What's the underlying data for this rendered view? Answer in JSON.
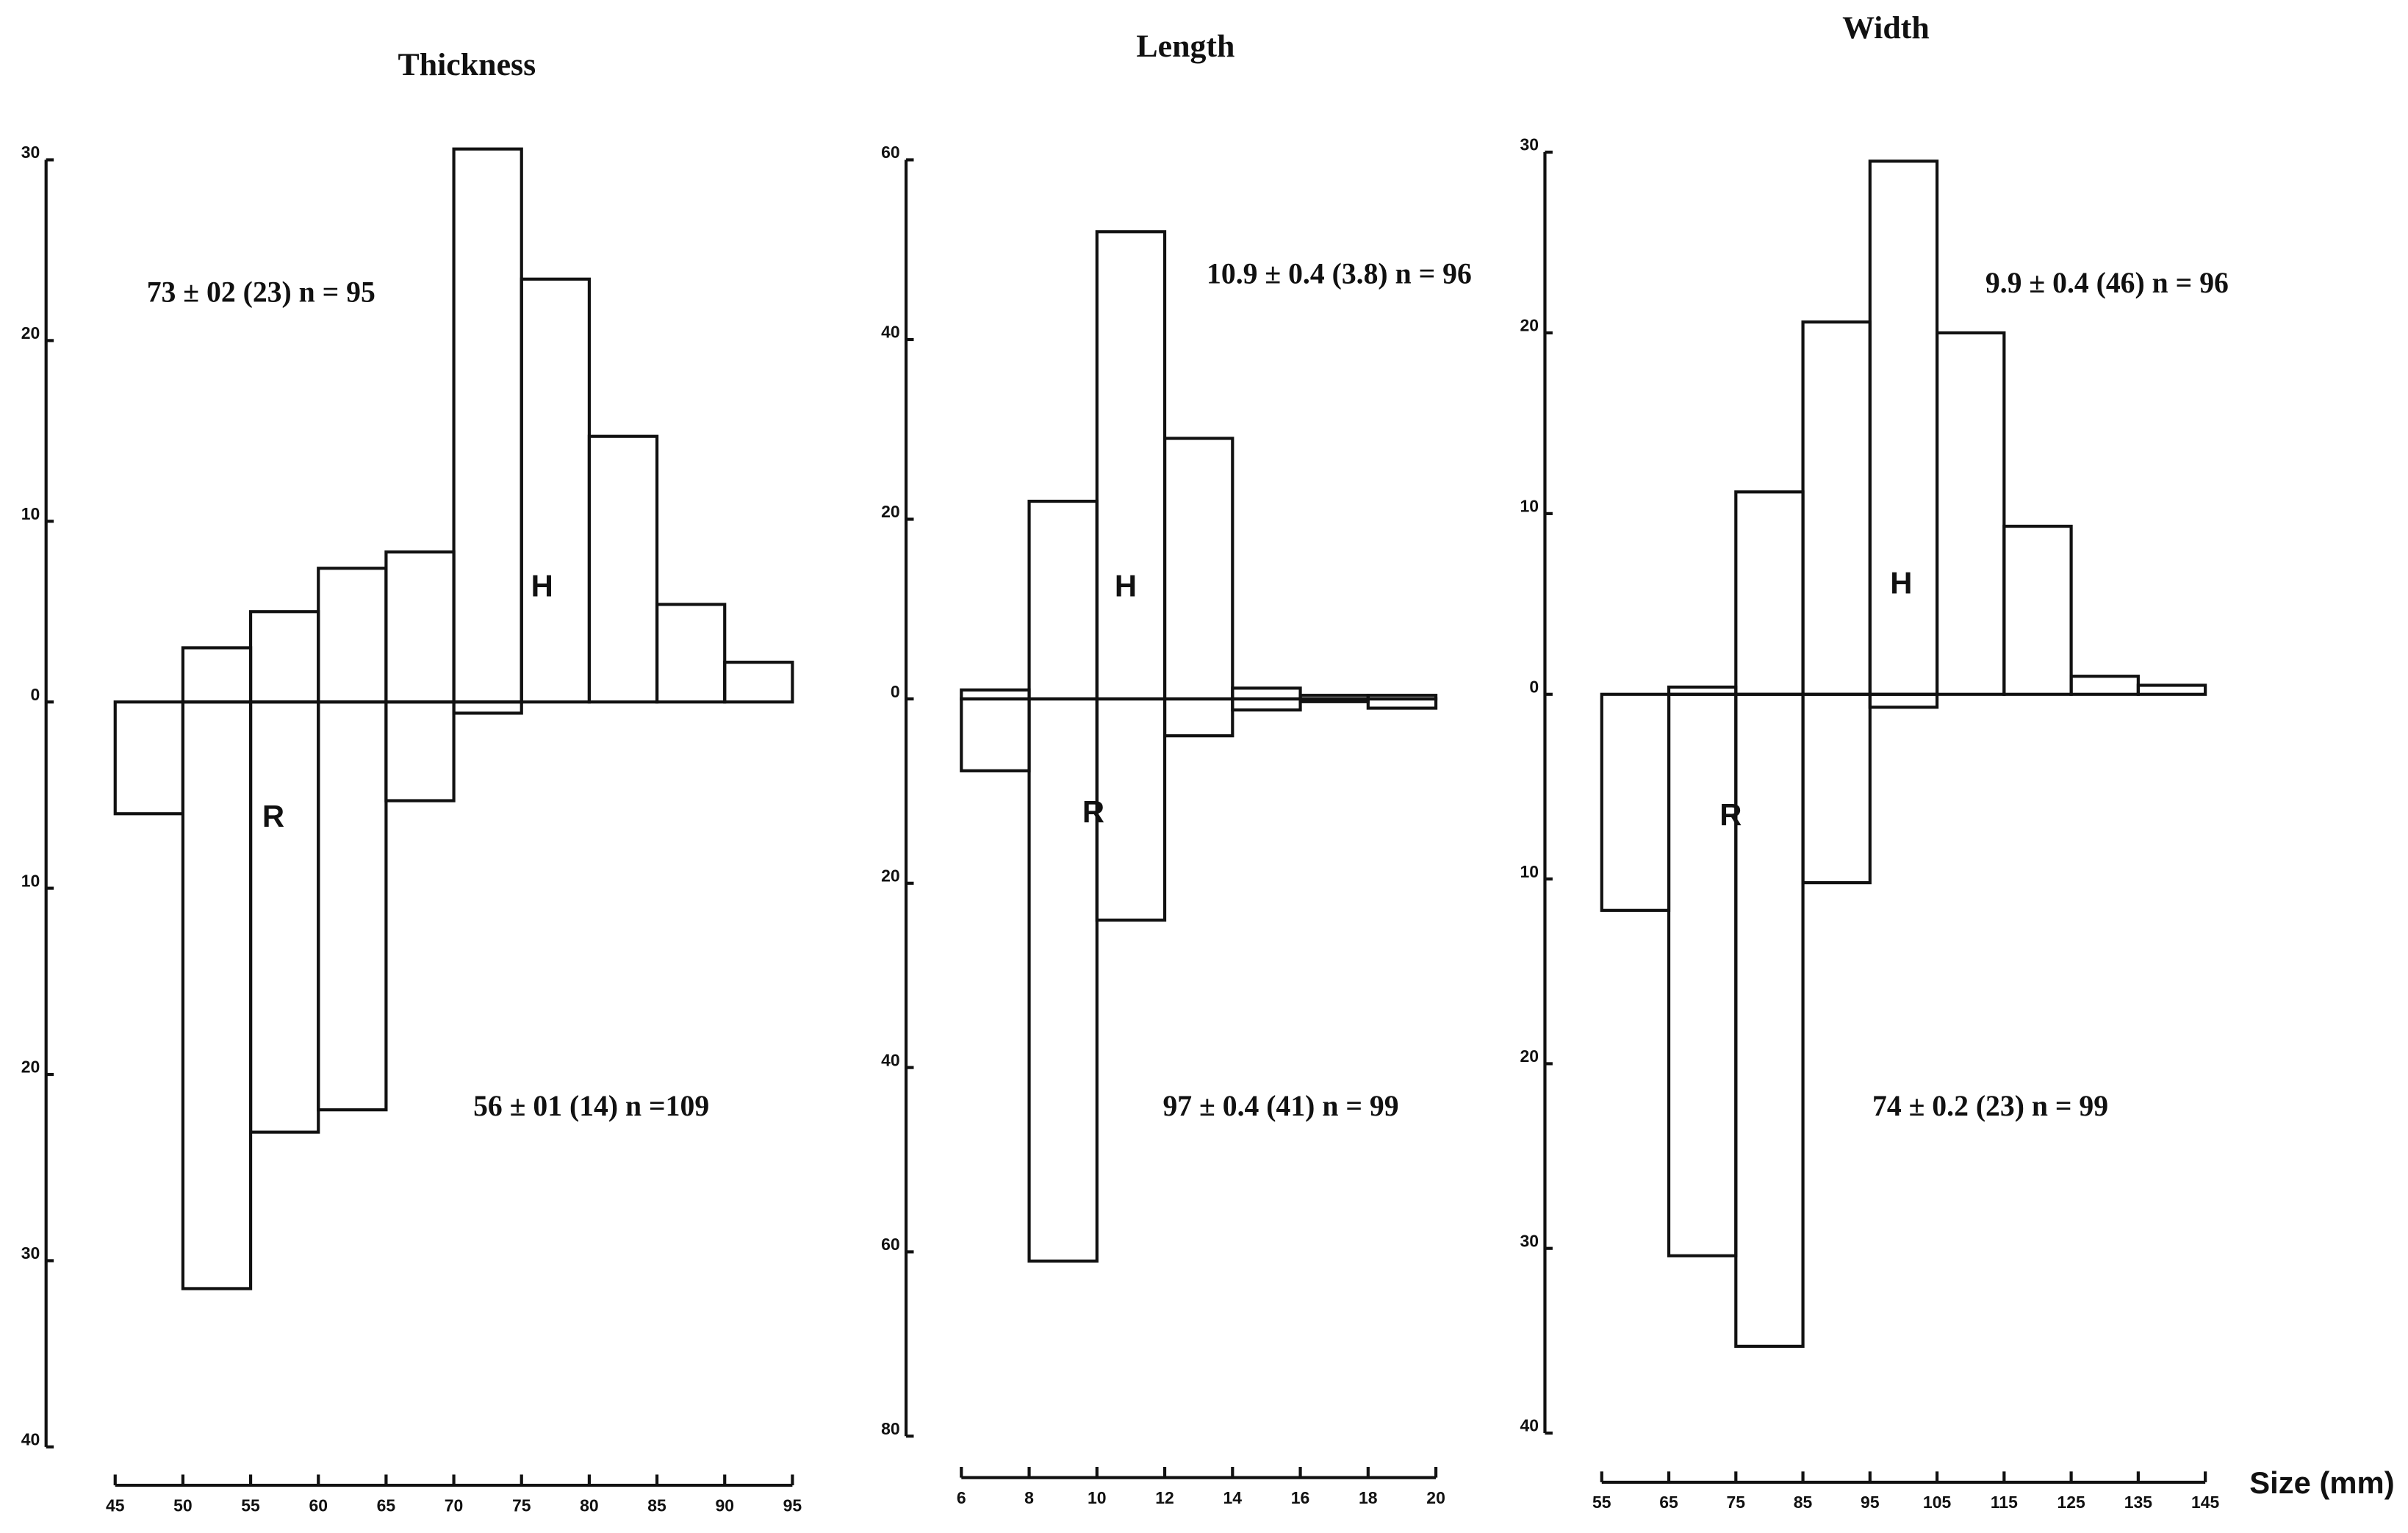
{
  "chart_data": [
    {
      "type": "mirror_histogram",
      "title": "Thickness",
      "bins": [
        45,
        50,
        55,
        60,
        65,
        70,
        75,
        80,
        85,
        90,
        95
      ],
      "xlim": [
        45,
        95
      ],
      "series": [
        {
          "name": "H",
          "color": "#111111",
          "values": [
            0,
            3,
            5,
            7.4,
            8.3,
            30.6,
            23.4,
            14.7,
            5.4,
            2.2
          ]
        },
        {
          "name": "R",
          "color": "#111111",
          "axis": "y2",
          "values": [
            6,
            31.5,
            23.1,
            21.9,
            5.3,
            0.6,
            0,
            0,
            0,
            0
          ]
        }
      ],
      "ylim": [
        0,
        30
      ],
      "yticks": [
        0,
        10,
        20,
        30
      ],
      "y2lim": [
        0,
        40
      ],
      "y2ticks": [
        10,
        20,
        30,
        40
      ],
      "annotations": [
        "73 ± 02 (23) n = 95",
        "56 ± 01 (14) n =109"
      ]
    },
    {
      "type": "mirror_histogram",
      "title": "Length",
      "bins": [
        6,
        8,
        10,
        12,
        14,
        16,
        18,
        20
      ],
      "xlim": [
        6,
        20
      ],
      "series": [
        {
          "name": "H",
          "color": "#111111",
          "values": [
            1,
            22,
            52,
            29,
            1.2,
            0.4,
            0.4
          ]
        },
        {
          "name": "R",
          "color": "#111111",
          "axis": "y2",
          "values": [
            7.8,
            61,
            24,
            4,
            1.2,
            0.3,
            1
          ]
        }
      ],
      "ylim": [
        0,
        60
      ],
      "yticks": [
        0,
        20,
        40,
        60
      ],
      "y2lim": [
        0,
        80
      ],
      "y2ticks": [
        20,
        40,
        60,
        80
      ],
      "annotations": [
        "10.9 ± 0.4 (3.8) n = 96",
        "97 ± 0.4 (41) n = 99"
      ]
    },
    {
      "type": "mirror_histogram",
      "title": "Width",
      "xlabel": "Size (mm)",
      "bins": [
        55,
        65,
        75,
        85,
        95,
        105,
        115,
        125,
        135,
        145
      ],
      "xlim": [
        55,
        145
      ],
      "series": [
        {
          "name": "H",
          "color": "#111111",
          "values": [
            0,
            0.4,
            11.2,
            20.6,
            29.5,
            20,
            9.3,
            1,
            0.5
          ]
        },
        {
          "name": "R",
          "color": "#111111",
          "axis": "y2",
          "values": [
            11.7,
            30.4,
            35.3,
            10.2,
            0.7,
            0,
            0,
            0,
            0
          ]
        }
      ],
      "ylim": [
        0,
        30
      ],
      "yticks": [
        0,
        10,
        20,
        30
      ],
      "y2lim": [
        0,
        40
      ],
      "y2ticks": [
        10,
        20,
        30,
        40
      ],
      "annotations": [
        "9.9 ± 0.4 (46) n = 96",
        "74 ± 0.2 (23) n = 99"
      ]
    }
  ]
}
